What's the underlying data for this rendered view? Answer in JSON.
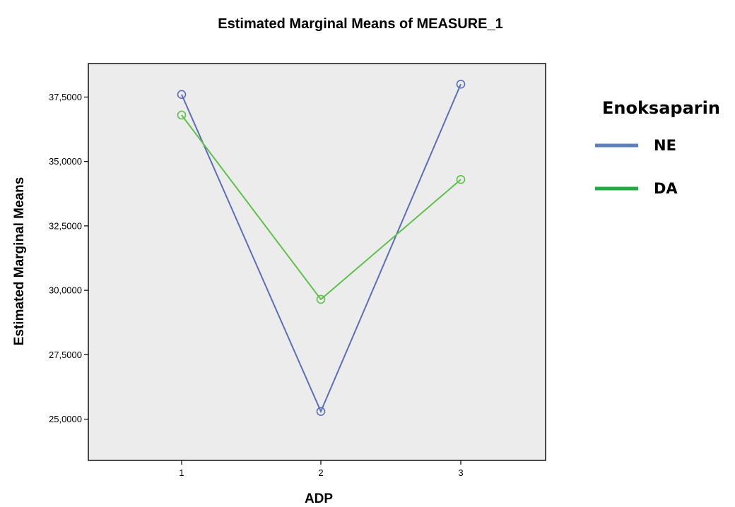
{
  "chart_data": {
    "type": "line",
    "title": "Estimated Marginal Means of MEASURE_1",
    "xlabel": "ADP",
    "ylabel": "Estimated Marginal Means",
    "categories": [
      "1",
      "2",
      "3"
    ],
    "ylim": [
      23.4,
      38.8
    ],
    "yticks": [
      "25,0000",
      "27,5000",
      "30,0000",
      "32,5000",
      "35,0000",
      "37,5000"
    ],
    "ytick_values": [
      25,
      27.5,
      30,
      32.5,
      35,
      37.5
    ],
    "grid": false,
    "legend": {
      "title": "Enoksaparin",
      "placement": "right"
    },
    "series": [
      {
        "name": "NE",
        "values": [
          37.6,
          25.3,
          38.0
        ],
        "color": "#5b6fb8",
        "legend_color": "#5b80c0"
      },
      {
        "name": "DA",
        "values": [
          36.8,
          29.65,
          34.3
        ],
        "color": "#5ec14a",
        "legend_color": "#22aa44"
      }
    ],
    "plot_background": "#ececec"
  }
}
